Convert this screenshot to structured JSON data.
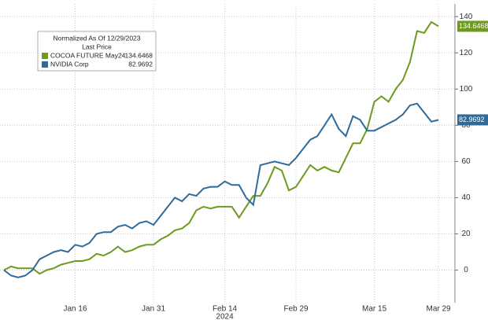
{
  "chart_data": {
    "type": "line",
    "legend_title": "Normalized As Of 12/29/2023",
    "legend_subtitle": "Last Price",
    "x_sublabel": "2024",
    "categories": [
      null,
      null,
      null,
      null,
      null,
      null,
      null,
      null,
      null,
      null,
      "Jan 16",
      null,
      null,
      null,
      null,
      null,
      null,
      null,
      null,
      null,
      null,
      "Jan 31",
      null,
      null,
      null,
      null,
      null,
      null,
      null,
      null,
      null,
      "Feb 14",
      null,
      null,
      null,
      null,
      null,
      null,
      null,
      null,
      null,
      "Feb 29",
      null,
      null,
      null,
      null,
      null,
      null,
      null,
      null,
      null,
      null,
      "Mar 15",
      null,
      null,
      null,
      null,
      null,
      null,
      null,
      null,
      "Mar 29"
    ],
    "series": [
      {
        "name": "COCOA FUTURE May24",
        "color": "#6e9a1e",
        "values": [
          0,
          2,
          1,
          1,
          1,
          -2,
          0,
          1,
          3,
          4,
          5,
          5,
          6,
          9,
          8,
          10,
          13,
          10,
          11,
          13,
          14,
          14,
          17,
          19,
          22,
          23,
          26,
          33,
          35,
          34,
          35,
          35,
          35,
          29,
          35,
          41,
          41,
          48,
          57,
          55,
          44,
          46,
          52,
          58,
          55,
          57,
          55,
          54,
          62,
          70,
          70,
          78,
          93,
          96,
          93,
          100,
          105,
          115,
          132,
          131,
          137,
          134.6468
        ]
      },
      {
        "name": "NVIDIA Corp",
        "color": "#2f6b9a",
        "values": [
          0,
          -3,
          -4,
          -3,
          0,
          6,
          8,
          10,
          11,
          10,
          14,
          13,
          15,
          20,
          21,
          21,
          24,
          25,
          23,
          26,
          27,
          25,
          30,
          35,
          40,
          38,
          42,
          41,
          45,
          46,
          46,
          49,
          47,
          47,
          40,
          36,
          58,
          59,
          60,
          59,
          58,
          62,
          67,
          72,
          74,
          80,
          86,
          78,
          74,
          85,
          83,
          77,
          77,
          79,
          81,
          83,
          86,
          91,
          92,
          87,
          82,
          82.9692
        ]
      }
    ],
    "ylim": [
      -18,
      147
    ],
    "yticks": [
      0,
      20,
      40,
      60,
      80,
      100,
      120,
      140
    ],
    "grid": true
  }
}
